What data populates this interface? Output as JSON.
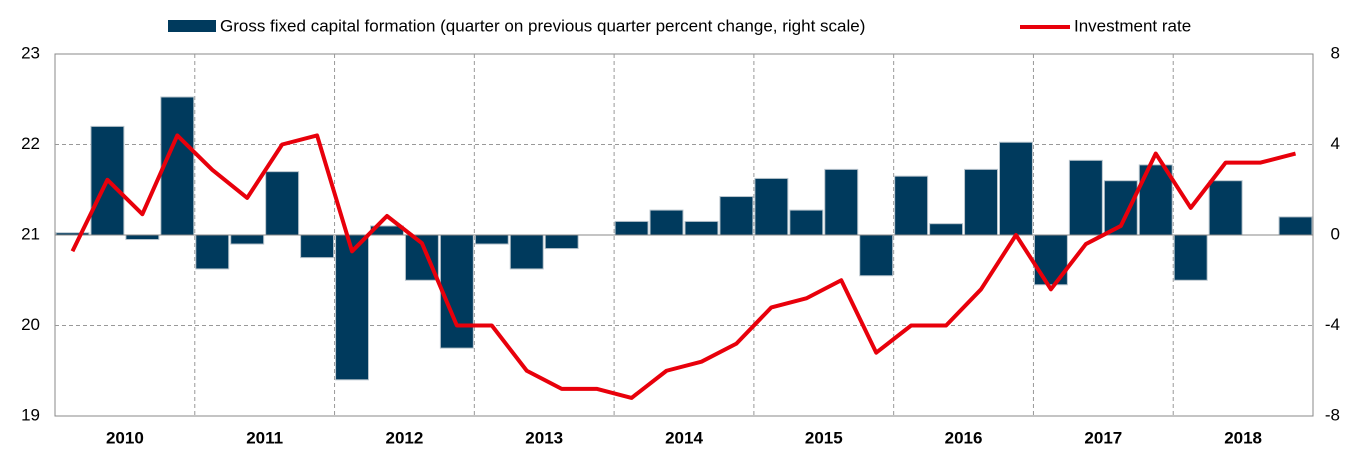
{
  "chart_data": {
    "type": "bar_line",
    "categories": [
      null,
      null,
      null,
      null,
      null,
      null,
      null,
      null,
      null,
      null,
      null,
      null,
      null,
      null,
      null,
      null,
      null,
      null,
      null,
      null,
      null,
      null,
      null,
      null,
      null,
      null,
      null,
      null,
      null,
      null,
      null,
      null,
      null,
      null,
      null,
      null
    ],
    "year_labels": [
      "2010",
      "2011",
      "2012",
      "2013",
      "2014",
      "2015",
      "2016",
      "2017",
      "2018"
    ],
    "series": [
      {
        "name": "Gross fixed capital formation (quarter on previous quarter percent change, right scale)",
        "type": "bar",
        "axis": "y2",
        "color": "#003a5d",
        "values": [
          0.1,
          4.8,
          -0.2,
          6.1,
          -1.5,
          -0.4,
          2.8,
          -1.0,
          -6.4,
          0.4,
          -2.0,
          -5.0,
          -0.4,
          -1.5,
          -0.6,
          0,
          0.6,
          1.1,
          0.6,
          1.7,
          2.5,
          1.1,
          2.9,
          -1.8,
          2.6,
          0.5,
          2.9,
          4.1,
          -2.2,
          3.3,
          2.4,
          3.1,
          -2.0,
          2.4,
          0,
          0.8
        ]
      },
      {
        "name": "Investment rate",
        "type": "line",
        "axis": "y",
        "color": "#e8000b",
        "values": [
          20.82,
          21.61,
          21.23,
          22.1,
          21.72,
          21.41,
          22.0,
          22.1,
          20.82,
          21.21,
          20.91,
          20.0,
          20.0,
          19.5,
          19.3,
          19.3,
          19.2,
          19.5,
          19.6,
          19.8,
          20.2,
          20.3,
          20.5,
          19.7,
          20.0,
          20.0,
          20.4,
          21.0,
          20.4,
          20.9,
          21.1,
          21.9,
          21.3,
          21.8,
          21.8,
          21.9
        ]
      }
    ],
    "ylim": [
      19,
      23
    ],
    "yticks": [
      19,
      20,
      21,
      22,
      23
    ],
    "y2lim": [
      -8,
      8
    ],
    "y2ticks": [
      -8,
      -4,
      0,
      4,
      8
    ],
    "grid": true
  }
}
